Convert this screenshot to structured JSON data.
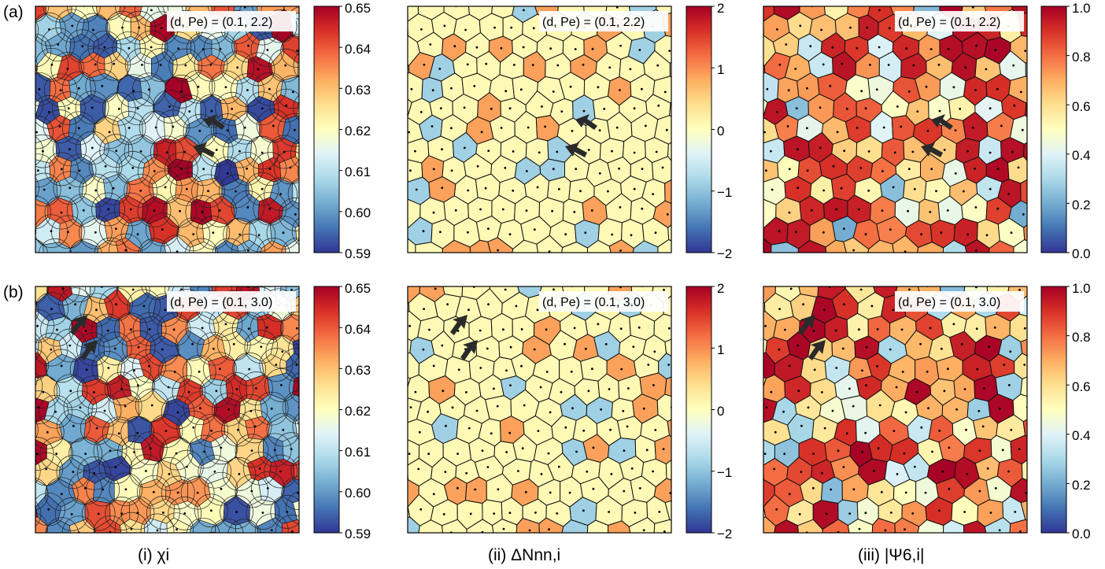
{
  "figure": {
    "row_labels": [
      "(a)",
      "(b)"
    ],
    "column_labels": [
      "(i)  χi",
      "(ii)  ΔNnn,i",
      "(iii)  |Ψ6,i|"
    ],
    "panel_annotations": {
      "a": "(d, Pe) = (0.1, 2.2)",
      "b": "(d, Pe) = (0.1, 3.0)"
    },
    "colorbars": [
      {
        "quantity": "χi",
        "min": 0.59,
        "max": 0.65,
        "ticks": [
          "0.65",
          "0.64",
          "0.63",
          "0.62",
          "0.61",
          "0.60",
          "0.59"
        ]
      },
      {
        "quantity": "ΔNnn,i",
        "min": -2,
        "max": 2,
        "ticks": [
          "2",
          "1",
          "0",
          "−1",
          "−2"
        ]
      },
      {
        "quantity": "|Ψ6,i|",
        "min": 0.0,
        "max": 1.0,
        "ticks": [
          "1.0",
          "0.8",
          "0.6",
          "0.4",
          "0.2",
          "0.0"
        ]
      }
    ],
    "colormap": "RdYlBu_r"
  }
}
